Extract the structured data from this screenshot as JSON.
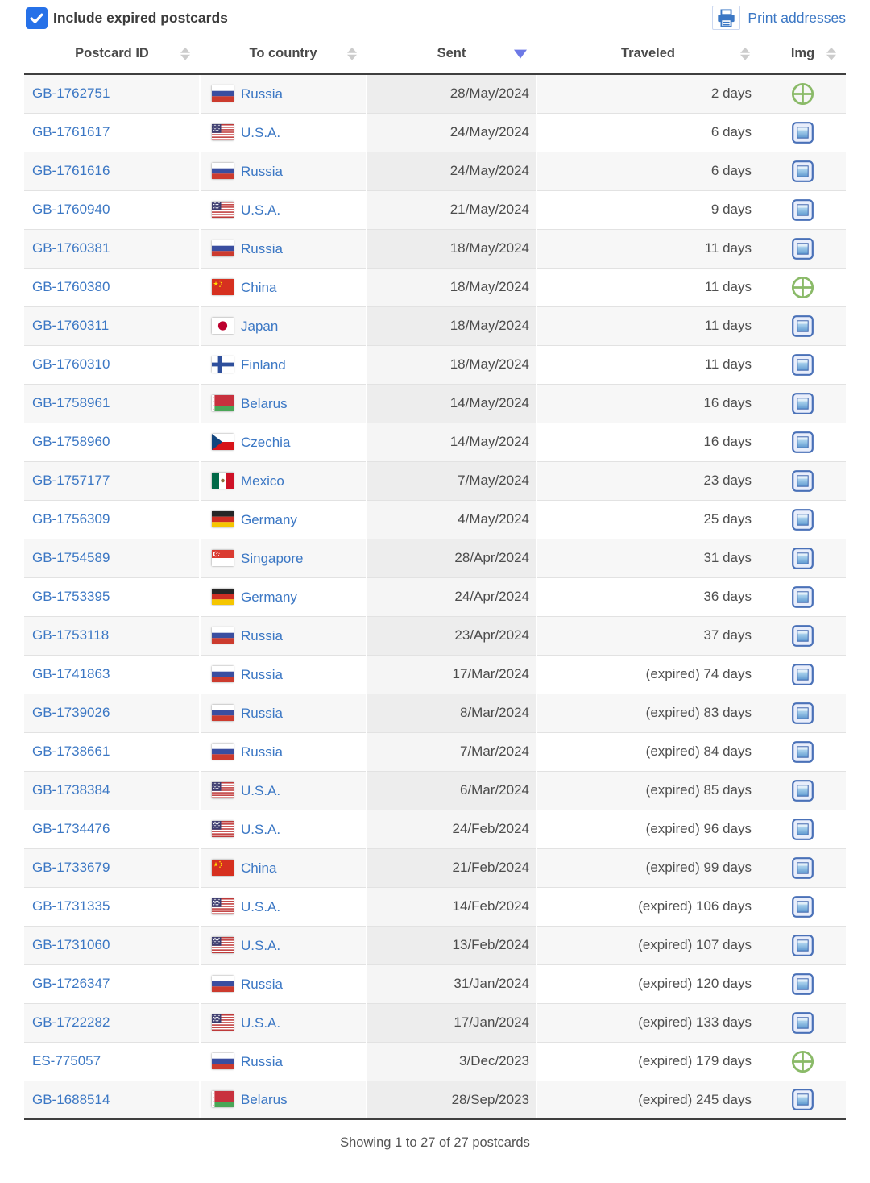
{
  "controls": {
    "include_expired_label": "Include expired postcards",
    "include_expired_checked": true,
    "print_addresses_label": "Print addresses"
  },
  "table": {
    "columns": [
      {
        "key": "id",
        "label": "Postcard ID",
        "sort": "none"
      },
      {
        "key": "country",
        "label": "To country",
        "sort": "none"
      },
      {
        "key": "sent",
        "label": "Sent",
        "sort": "desc"
      },
      {
        "key": "traveled",
        "label": "Traveled",
        "sort": "none"
      },
      {
        "key": "img",
        "label": "Img",
        "sort": "none"
      }
    ],
    "rows": [
      {
        "id": "GB-1762751",
        "country": "Russia",
        "flag": "ru",
        "sent": "28/May/2024",
        "traveled": "2 days",
        "img": "globe-icon"
      },
      {
        "id": "GB-1761617",
        "country": "U.S.A.",
        "flag": "us",
        "sent": "24/May/2024",
        "traveled": "6 days",
        "img": "image-icon"
      },
      {
        "id": "GB-1761616",
        "country": "Russia",
        "flag": "ru",
        "sent": "24/May/2024",
        "traveled": "6 days",
        "img": "image-icon"
      },
      {
        "id": "GB-1760940",
        "country": "U.S.A.",
        "flag": "us",
        "sent": "21/May/2024",
        "traveled": "9 days",
        "img": "image-icon"
      },
      {
        "id": "GB-1760381",
        "country": "Russia",
        "flag": "ru",
        "sent": "18/May/2024",
        "traveled": "11 days",
        "img": "image-icon"
      },
      {
        "id": "GB-1760380",
        "country": "China",
        "flag": "cn",
        "sent": "18/May/2024",
        "traveled": "11 days",
        "img": "globe-icon"
      },
      {
        "id": "GB-1760311",
        "country": "Japan",
        "flag": "jp",
        "sent": "18/May/2024",
        "traveled": "11 days",
        "img": "image-icon"
      },
      {
        "id": "GB-1760310",
        "country": "Finland",
        "flag": "fi",
        "sent": "18/May/2024",
        "traveled": "11 days",
        "img": "image-icon"
      },
      {
        "id": "GB-1758961",
        "country": "Belarus",
        "flag": "by",
        "sent": "14/May/2024",
        "traveled": "16 days",
        "img": "image-icon"
      },
      {
        "id": "GB-1758960",
        "country": "Czechia",
        "flag": "cz",
        "sent": "14/May/2024",
        "traveled": "16 days",
        "img": "image-icon"
      },
      {
        "id": "GB-1757177",
        "country": "Mexico",
        "flag": "mx",
        "sent": "7/May/2024",
        "traveled": "23 days",
        "img": "image-icon"
      },
      {
        "id": "GB-1756309",
        "country": "Germany",
        "flag": "de",
        "sent": "4/May/2024",
        "traveled": "25 days",
        "img": "image-icon"
      },
      {
        "id": "GB-1754589",
        "country": "Singapore",
        "flag": "sg",
        "sent": "28/Apr/2024",
        "traveled": "31 days",
        "img": "image-icon"
      },
      {
        "id": "GB-1753395",
        "country": "Germany",
        "flag": "de",
        "sent": "24/Apr/2024",
        "traveled": "36 days",
        "img": "image-icon"
      },
      {
        "id": "GB-1753118",
        "country": "Russia",
        "flag": "ru",
        "sent": "23/Apr/2024",
        "traveled": "37 days",
        "img": "image-icon"
      },
      {
        "id": "GB-1741863",
        "country": "Russia",
        "flag": "ru",
        "sent": "17/Mar/2024",
        "traveled": "(expired) 74 days",
        "img": "image-icon"
      },
      {
        "id": "GB-1739026",
        "country": "Russia",
        "flag": "ru",
        "sent": "8/Mar/2024",
        "traveled": "(expired) 83 days",
        "img": "image-icon"
      },
      {
        "id": "GB-1738661",
        "country": "Russia",
        "flag": "ru",
        "sent": "7/Mar/2024",
        "traveled": "(expired) 84 days",
        "img": "image-icon"
      },
      {
        "id": "GB-1738384",
        "country": "U.S.A.",
        "flag": "us",
        "sent": "6/Mar/2024",
        "traveled": "(expired) 85 days",
        "img": "image-icon"
      },
      {
        "id": "GB-1734476",
        "country": "U.S.A.",
        "flag": "us",
        "sent": "24/Feb/2024",
        "traveled": "(expired) 96 days",
        "img": "image-icon"
      },
      {
        "id": "GB-1733679",
        "country": "China",
        "flag": "cn",
        "sent": "21/Feb/2024",
        "traveled": "(expired) 99 days",
        "img": "image-icon"
      },
      {
        "id": "GB-1731335",
        "country": "U.S.A.",
        "flag": "us",
        "sent": "14/Feb/2024",
        "traveled": "(expired) 106 days",
        "img": "image-icon"
      },
      {
        "id": "GB-1731060",
        "country": "U.S.A.",
        "flag": "us",
        "sent": "13/Feb/2024",
        "traveled": "(expired) 107 days",
        "img": "image-icon"
      },
      {
        "id": "GB-1726347",
        "country": "Russia",
        "flag": "ru",
        "sent": "31/Jan/2024",
        "traveled": "(expired) 120 days",
        "img": "image-icon"
      },
      {
        "id": "GB-1722282",
        "country": "U.S.A.",
        "flag": "us",
        "sent": "17/Jan/2024",
        "traveled": "(expired) 133 days",
        "img": "image-icon"
      },
      {
        "id": "ES-775057",
        "country": "Russia",
        "flag": "ru",
        "sent": "3/Dec/2023",
        "traveled": "(expired) 179 days",
        "img": "globe-icon"
      },
      {
        "id": "GB-1688514",
        "country": "Belarus",
        "flag": "by",
        "sent": "28/Sep/2023",
        "traveled": "(expired) 245 days",
        "img": "image-icon"
      }
    ]
  },
  "footer": {
    "summary": "Showing 1 to 27 of 27 postcards"
  },
  "colors": {
    "link_blue": "#3b77c4",
    "checkbox_blue": "#2671e8",
    "active_sort_indigo": "#6d79e6",
    "globe_icon_green": "#8aba68",
    "image_icon_blue": "#4a71b8"
  }
}
